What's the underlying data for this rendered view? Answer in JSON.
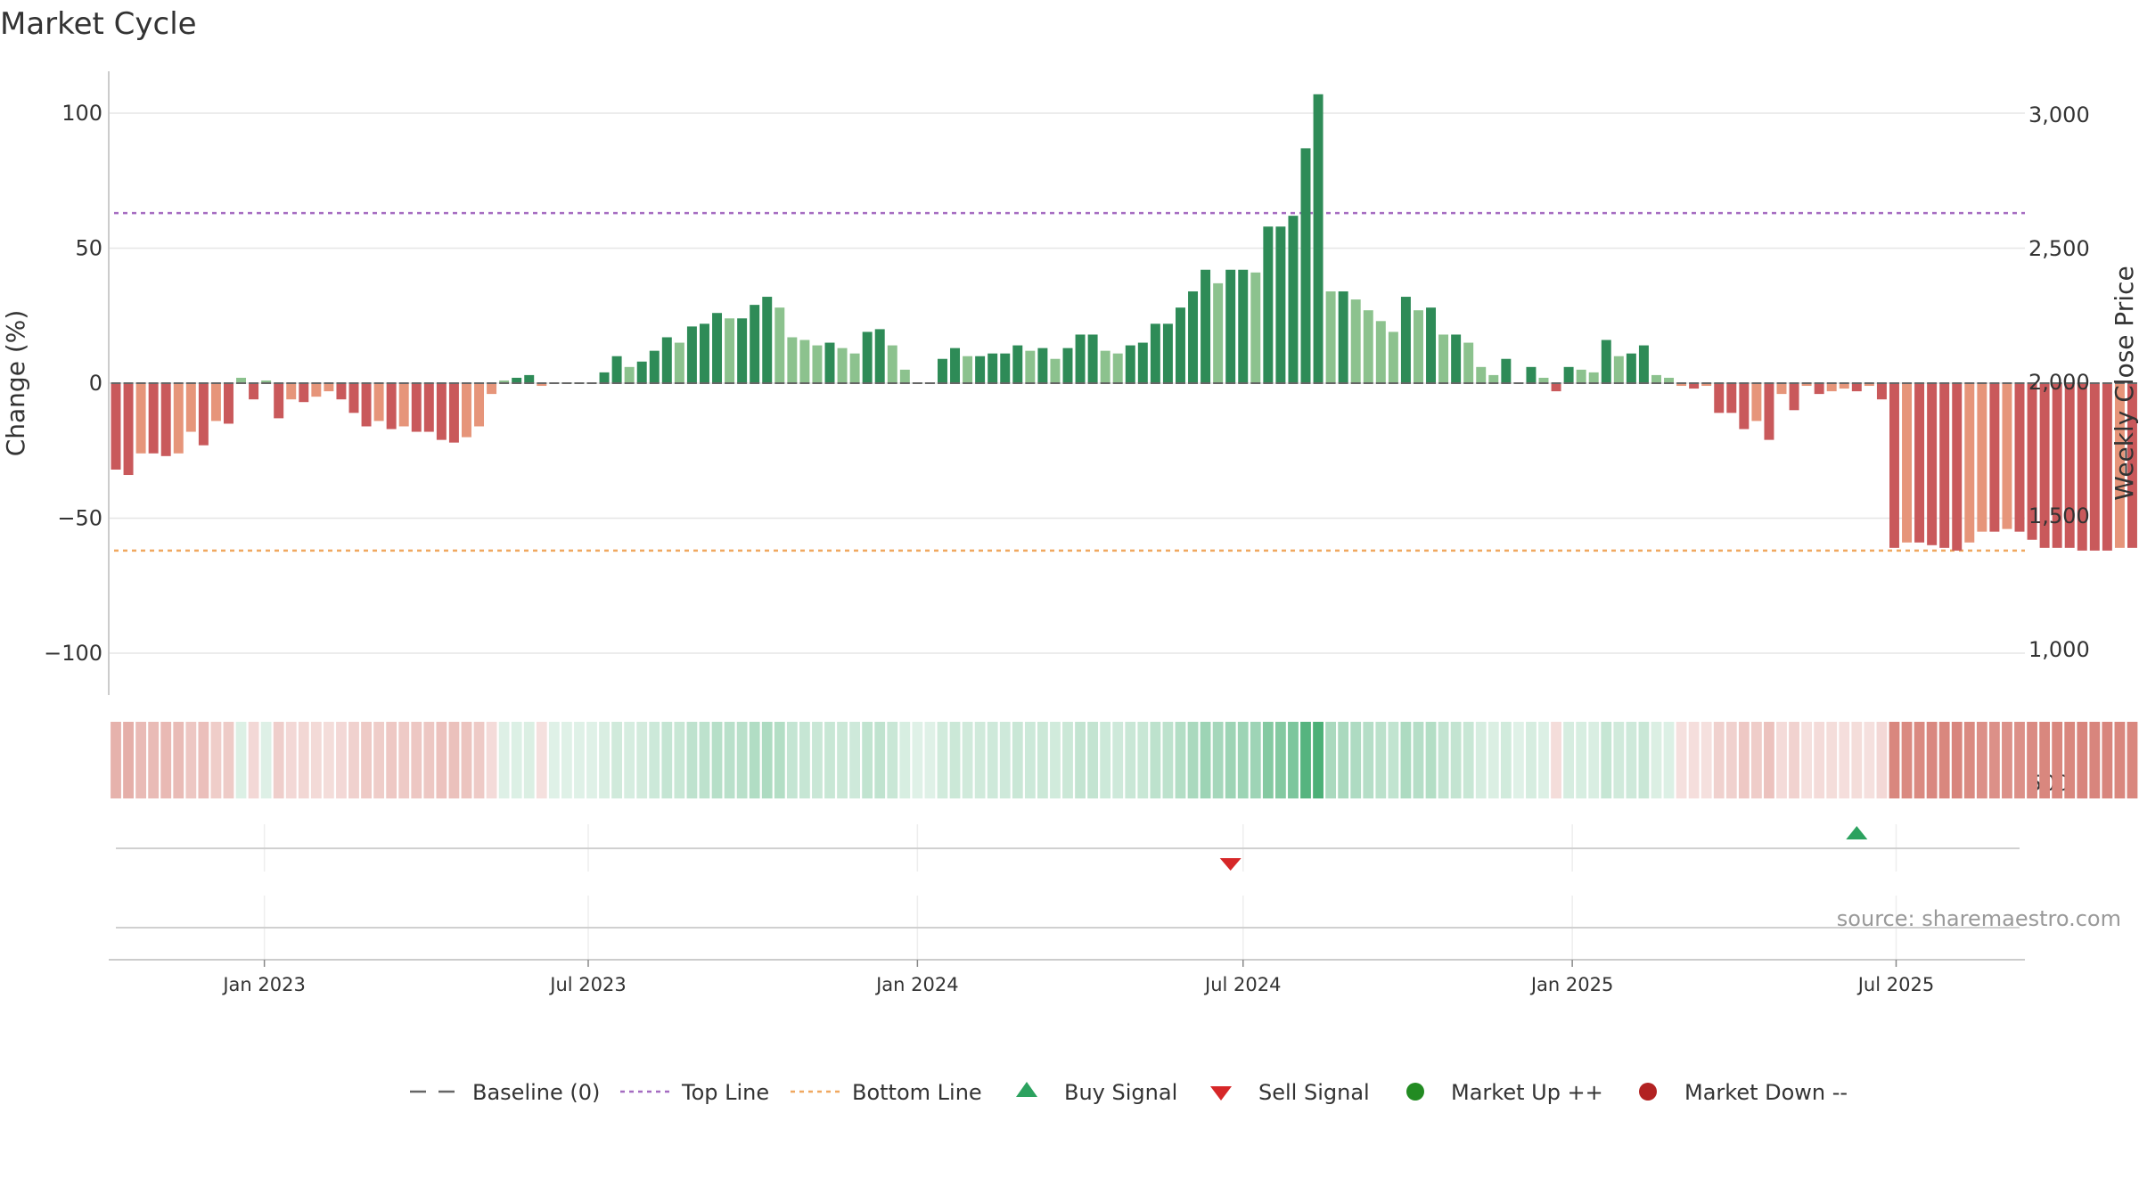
{
  "chart_data": {
    "type": "bar",
    "title": "Market Cycle",
    "ylabel_left": "Change (%)",
    "ylabel_right": "Weekly Close Price",
    "ylim": [
      -115,
      117
    ],
    "yticks": [
      100,
      50,
      0,
      -50,
      -100
    ],
    "ytick_labels": [
      "100",
      "50",
      "0",
      "−50",
      "−100"
    ],
    "ylim_right": [
      420,
      3350
    ],
    "yticks_right": [
      3000,
      2500,
      2000,
      1500,
      1000,
      500
    ],
    "ytick_right_labels": [
      "3,000",
      "2,500",
      "2,000",
      "1,500",
      "1,000",
      "500"
    ],
    "top_line": 63,
    "bottom_line": -62,
    "x_start": "2022-10-10",
    "x_end": "2025-09-08",
    "xticks": [
      "2023-01-01",
      "2023-07-01",
      "2024-01-01",
      "2024-07-01",
      "2025-01-01",
      "2025-07-01"
    ],
    "xtick_labels": [
      "Jan 2023",
      "Jul 2023",
      "Jan 2024",
      "Jul 2024",
      "Jan 2025",
      "Jul 2025"
    ],
    "start_date": "2022-10-10",
    "values": [
      -32,
      -34,
      -26,
      -26,
      -27,
      -26,
      -18,
      -23,
      -14,
      -15,
      2,
      -6,
      1,
      -13,
      -6,
      -7,
      -5,
      -3,
      -6,
      -11,
      -16,
      -14,
      -17,
      -16,
      -18,
      -18,
      -21,
      -22,
      -20,
      -16,
      -4,
      1,
      2,
      3,
      -1,
      0,
      0,
      0,
      0,
      4,
      10,
      6,
      8,
      12,
      17,
      15,
      21,
      22,
      26,
      24,
      24,
      29,
      32,
      28,
      17,
      16,
      14,
      15,
      13,
      11,
      19,
      20,
      14,
      5,
      0,
      0,
      9,
      13,
      10,
      10,
      11,
      11,
      14,
      12,
      13,
      9,
      13,
      18,
      18,
      12,
      11,
      14,
      15,
      22,
      22,
      28,
      34,
      42,
      37,
      42,
      42,
      41,
      58,
      58,
      62,
      87,
      107,
      34,
      34,
      31,
      27,
      23,
      19,
      32,
      27,
      28,
      18,
      18,
      15,
      6,
      3,
      9,
      0,
      6,
      2,
      -3,
      6,
      5,
      4,
      16,
      10,
      11,
      14,
      3,
      2,
      -1,
      -2,
      -1,
      -11,
      -11,
      -17,
      -14,
      -21,
      -4,
      -10,
      -1,
      -4,
      -3,
      -2,
      -3,
      -1,
      -6,
      -61,
      -59,
      -59,
      -60,
      -61,
      -62,
      -59,
      -55,
      -55,
      -54,
      -55,
      -58,
      -61,
      -61,
      -61,
      -62,
      -62,
      -62,
      -61,
      -61
    ],
    "colors": {
      "strong_up": "#2e8b57",
      "weak_up": "#8cc28e",
      "strong_down": "#c9595b",
      "weak_down": "#e6957a",
      "top_line": "#a56cc1",
      "bottom_line": "#f0a860",
      "baseline": "#666666",
      "buy": "#2ca25f",
      "sell": "#d62728",
      "market_up": "#228b22",
      "market_down": "#b22222"
    },
    "signals": [
      {
        "type": "sell",
        "date": "2024-06-24"
      },
      {
        "type": "buy",
        "date": "2025-06-09"
      }
    ],
    "legend": [
      {
        "key": "baseline",
        "label": "Baseline (0)"
      },
      {
        "key": "top_line",
        "label": "Top Line"
      },
      {
        "key": "bottom_line",
        "label": "Bottom Line"
      },
      {
        "key": "buy",
        "label": "Buy Signal"
      },
      {
        "key": "sell",
        "label": "Sell Signal"
      },
      {
        "key": "market_up",
        "label": "Market Up ++"
      },
      {
        "key": "market_down",
        "label": "Market Down --"
      }
    ],
    "legend_position": "bottom-center",
    "grid": true
  },
  "source": "source: sharemaestro.com"
}
